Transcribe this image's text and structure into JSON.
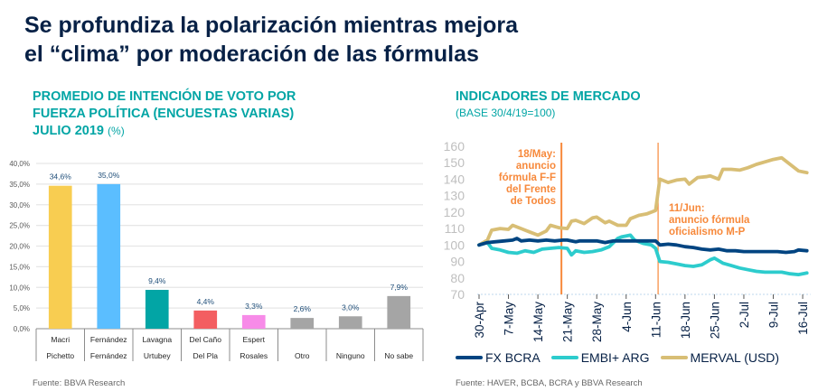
{
  "header": {
    "title_line1": "Se profundiza la polarización mientras mejora",
    "title_line2": "el “clima” por moderación de las fórmulas"
  },
  "left_panel": {
    "title_line1": "PROMEDIO DE INTENCIÓN DE VOTO POR",
    "title_line2": "FUERZA POLÍTICA (ENCUESTAS VARIAS)",
    "title_line3": "JULIO 2019",
    "title_unit": "(%)",
    "source": "Fuente: BBVA Research"
  },
  "right_panel": {
    "title": "INDICADORES DE MERCADO",
    "base": "(BASE 30/4/19=100)",
    "source": "Fuente: HAVER, BCBA, BCRA y BBVA Research"
  },
  "chart_data": [
    {
      "type": "bar",
      "title": "PROMEDIO DE INTENCIÓN DE VOTO POR FUERZA POLÍTICA (ENCUESTAS VARIAS) JULIO 2019 (%)",
      "categories": [
        [
          "Macri",
          "Pichetto"
        ],
        [
          "Fernández",
          "Fernández"
        ],
        [
          "Lavagna",
          "Urtubey"
        ],
        [
          "Del Caño",
          "Del Pla"
        ],
        [
          "Espert",
          "Rosales"
        ],
        [
          "",
          "Otro"
        ],
        [
          "",
          "Ninguno"
        ],
        [
          "",
          "No sabe"
        ]
      ],
      "values": [
        34.6,
        35.0,
        9.4,
        4.4,
        3.3,
        2.6,
        3.0,
        7.9
      ],
      "value_labels": [
        "34,6%",
        "35,0%",
        "9,4%",
        "4,4%",
        "3,3%",
        "2,6%",
        "3,0%",
        "7,9%"
      ],
      "colors": [
        "#F8CD51",
        "#5BBEFF",
        "#02A5A5",
        "#F35E61",
        "#F78BE8",
        "#A5A5A5",
        "#A5A5A5",
        "#A5A5A5"
      ],
      "ylim": [
        0,
        40
      ],
      "yticks": [
        0,
        5,
        10,
        15,
        20,
        25,
        30,
        35,
        40
      ],
      "ytick_labels": [
        "0,0%",
        "5,0%",
        "10,0%",
        "15,0%",
        "20,0%",
        "25,0%",
        "30,0%",
        "35,0%",
        "40,0%"
      ],
      "grid": true,
      "xlabel": "",
      "ylabel": ""
    },
    {
      "type": "line",
      "title": "INDICADORES DE MERCADO (BASE 30/4/19=100)",
      "x_start": "30-Apr",
      "x_ticks": [
        "30-Apr",
        "7-May",
        "14-May",
        "21-May",
        "28-May",
        "4-Jun",
        "11-Jun",
        "18-Jun",
        "25-Jun",
        "2-Jul",
        "9-Jul",
        "16-Jul"
      ],
      "x_tick_days": [
        0,
        7,
        14,
        21,
        28,
        35,
        42,
        49,
        56,
        63,
        70,
        77
      ],
      "ylim": [
        70,
        160
      ],
      "yticks": [
        70,
        80,
        90,
        100,
        110,
        120,
        130,
        140,
        150,
        160
      ],
      "legend_position": "bottom",
      "series": [
        {
          "name": "FX BCRA",
          "color": "#004481",
          "days": [
            0,
            2,
            4,
            6,
            8,
            9,
            10,
            12,
            14,
            16,
            18,
            20,
            21,
            23,
            24,
            26,
            28,
            30,
            32,
            34,
            36,
            38,
            40,
            42,
            43,
            45,
            47,
            49,
            51,
            53,
            55,
            57,
            59,
            61,
            63,
            65,
            67,
            69,
            71,
            73,
            75,
            76,
            78
          ],
          "values": [
            100,
            101.5,
            102,
            102.5,
            103,
            104,
            102.5,
            103,
            102.5,
            103,
            102.5,
            103,
            103,
            102,
            102.5,
            102.5,
            102.5,
            101.5,
            102.5,
            102.5,
            102.5,
            102.5,
            102.5,
            102.5,
            100,
            100.5,
            100,
            99,
            98.5,
            97.5,
            97,
            97.5,
            96.5,
            96.5,
            96,
            96,
            96,
            96,
            96,
            95.5,
            96,
            97,
            96.5
          ]
        },
        {
          "name": "EMBI+ ARG",
          "color": "#2DCCCD",
          "days": [
            0,
            2,
            3,
            5,
            7,
            9,
            11,
            13,
            15,
            17,
            19,
            21,
            22,
            23,
            25,
            27,
            29,
            31,
            33,
            34,
            36,
            37,
            39,
            41,
            42,
            43,
            45,
            47,
            49,
            51,
            53,
            55,
            56,
            58,
            60,
            62,
            64,
            66,
            68,
            70,
            72,
            74,
            76,
            78
          ],
          "values": [
            100,
            101.5,
            98,
            97,
            95.5,
            95,
            96.5,
            95.5,
            97.5,
            98,
            98.5,
            98,
            94,
            96.5,
            95.5,
            96,
            97,
            99,
            104,
            105,
            106,
            103,
            101,
            100,
            98,
            90,
            89.5,
            88.5,
            87.5,
            87,
            88,
            91,
            92,
            89,
            87.5,
            86,
            85,
            84,
            83.5,
            83.5,
            83.5,
            82.5,
            82,
            83
          ]
        },
        {
          "name": "MERVAL (USD)",
          "color": "#D8BE75",
          "days": [
            0,
            2,
            3,
            5,
            7,
            8,
            10,
            12,
            14,
            16,
            17,
            19,
            21,
            22,
            23,
            25,
            27,
            28,
            30,
            31,
            33,
            35,
            36,
            38,
            40,
            42,
            43,
            45,
            47,
            49,
            50,
            52,
            54,
            55,
            57,
            58,
            60,
            62,
            64,
            66,
            68,
            70,
            72,
            74,
            76,
            78
          ],
          "values": [
            100,
            103,
            109,
            110,
            109.5,
            112,
            110,
            108,
            106,
            108.5,
            112,
            110.5,
            110,
            114.5,
            115,
            113,
            116.5,
            117,
            113.5,
            114.5,
            112,
            112,
            116,
            118,
            119,
            121,
            140,
            138,
            139.5,
            140,
            137,
            141,
            141.5,
            142,
            140,
            146,
            146,
            145.5,
            147,
            149,
            150.5,
            152,
            153,
            149,
            145,
            144
          ]
        }
      ],
      "annotations": [
        {
          "day": 19,
          "lines": [
            "18/May:",
            "anuncio",
            "fórmula F-F",
            "del Frente",
            "de Todos"
          ],
          "color": "#F7893B"
        },
        {
          "day": 42,
          "lines": [
            "11/Jun:",
            "anuncio fórmula",
            "oficialismo M-P"
          ],
          "color": "#F7893B"
        }
      ],
      "xlabel": "",
      "ylabel": ""
    }
  ]
}
